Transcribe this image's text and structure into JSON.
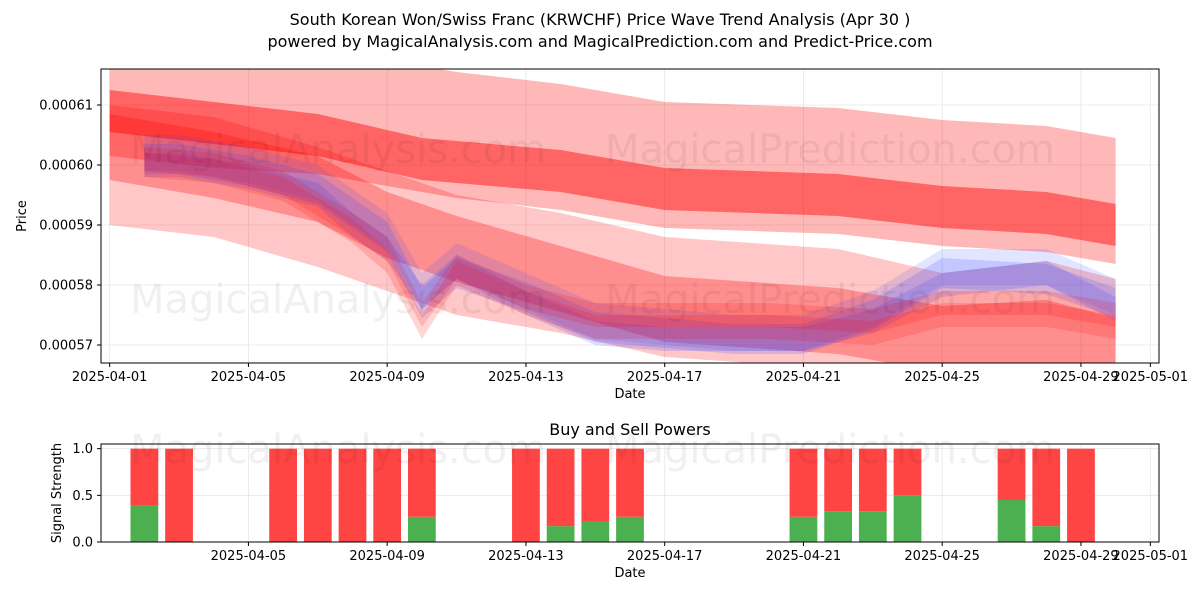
{
  "header": {
    "title": "South Korean Won/Swiss Franc (KRWCHF) Price Wave Trend Analysis (Apr 30 )",
    "subtitle": "powered by MagicalAnalysis.com and MagicalPrediction.com and Predict-Price.com"
  },
  "watermarks": [
    "MagicalAnalysis.com",
    "MagicalPrediction.com"
  ],
  "colors": {
    "red": "#ff0000",
    "blue": "#3344ff",
    "buy": "#4caf50",
    "sell": "#ff4444"
  },
  "chart_data": [
    {
      "type": "area",
      "xlabel": "Date",
      "ylabel": "Price",
      "xlim": [
        "2025-03-31T18:00",
        "2025-05-01T06:00"
      ],
      "ylim": [
        0.000567,
        0.000616
      ],
      "xticks": [
        "2025-04-01",
        "2025-04-05",
        "2025-04-09",
        "2025-04-13",
        "2025-04-17",
        "2025-04-21",
        "2025-04-25",
        "2025-04-29",
        "2025-05-01"
      ],
      "yticks": [
        0.00057,
        0.00058,
        0.00059,
        0.0006,
        0.00061
      ],
      "ytick_labels": [
        "0.00057",
        "0.00058",
        "0.00059",
        "0.00060",
        "0.00061"
      ],
      "grid": true,
      "series": [
        {
          "color": "red",
          "x": [
            "2025-04-01",
            "2025-04-04",
            "2025-04-07",
            "2025-04-10",
            "2025-04-14",
            "2025-04-17",
            "2025-04-22",
            "2025-04-25",
            "2025-04-28",
            "2025-04-30"
          ],
          "values": [
            0.000609,
            0.000607,
            0.000605,
            0.000601,
            0.000599,
            0.000596,
            0.000595,
            0.000593,
            0.000592,
            0.00059
          ],
          "spread": 3.5e-06,
          "alpha": 0.45
        },
        {
          "color": "red",
          "x": [
            "2025-04-01",
            "2025-04-04",
            "2025-04-07",
            "2025-04-09",
            "2025-04-11",
            "2025-04-14",
            "2025-04-17",
            "2025-04-22",
            "2025-04-25",
            "2025-04-28",
            "2025-04-30"
          ],
          "values": [
            0.000612,
            0.00061,
            0.000609,
            0.000607,
            0.000605,
            0.000603,
            0.0006,
            0.000599,
            0.000597,
            0.000596,
            0.000594
          ],
          "spread": 1.05e-05,
          "alpha": 0.28
        },
        {
          "color": "red",
          "x": [
            "2025-04-01",
            "2025-04-04",
            "2025-04-07",
            "2025-04-09",
            "2025-04-11",
            "2025-04-14",
            "2025-04-17",
            "2025-04-22",
            "2025-04-25",
            "2025-04-28",
            "2025-04-30"
          ],
          "values": [
            0.000603,
            0.0006,
            0.000596,
            0.00059,
            0.000586,
            0.000581,
            0.000576,
            0.000574,
            0.000571,
            0.000572,
            0.000569
          ],
          "spread": 5.5e-06,
          "alpha": 0.28
        },
        {
          "color": "red",
          "x": [
            "2025-04-01",
            "2025-04-04",
            "2025-04-07",
            "2025-04-09",
            "2025-04-11",
            "2025-04-14",
            "2025-04-17",
            "2025-04-22",
            "2025-04-25",
            "2025-04-28",
            "2025-04-30"
          ],
          "values": [
            0.0006,
            0.000598,
            0.000593,
            0.000589,
            0.000585,
            0.000582,
            0.000578,
            0.000576,
            0.000572,
            0.000574,
            0.000571
          ],
          "spread": 1e-05,
          "alpha": 0.22
        },
        {
          "color": "blue",
          "x": [
            "2025-04-02",
            "2025-04-03",
            "2025-04-05",
            "2025-04-07",
            "2025-04-08",
            "2025-04-09",
            "2025-04-10",
            "2025-04-11",
            "2025-04-13",
            "2025-04-15",
            "2025-04-17",
            "2025-04-19",
            "2025-04-21",
            "2025-04-23",
            "2025-04-25",
            "2025-04-28",
            "2025-04-30"
          ],
          "values": [
            0.000601,
            0.000601,
            0.000599,
            0.000596,
            0.000592,
            0.000588,
            0.000577,
            0.000582,
            0.000578,
            0.000573,
            0.000572,
            0.000571,
            0.000571,
            0.000575,
            0.000582,
            0.000581,
            0.000577
          ],
          "spread": 2.5e-06,
          "alpha": 0.18
        },
        {
          "color": "blue",
          "x": [
            "2025-04-02",
            "2025-04-03",
            "2025-04-05",
            "2025-04-07",
            "2025-04-08",
            "2025-04-09",
            "2025-04-10",
            "2025-04-11",
            "2025-04-13",
            "2025-04-15",
            "2025-04-17",
            "2025-04-19",
            "2025-04-21",
            "2025-04-23",
            "2025-04-25",
            "2025-04-28",
            "2025-04-30"
          ],
          "values": [
            0.0006,
            0.0006,
            0.000598,
            0.000595,
            0.00059,
            0.000586,
            0.000578,
            0.000583,
            0.000577,
            0.000572,
            0.000571,
            0.000571,
            0.000571,
            0.000574,
            0.00058,
            0.000582,
            0.000576
          ],
          "spread": 2e-06,
          "alpha": 0.18
        },
        {
          "color": "blue",
          "x": [
            "2025-04-02",
            "2025-04-03",
            "2025-04-05",
            "2025-04-07",
            "2025-04-08",
            "2025-04-09",
            "2025-04-10",
            "2025-04-11",
            "2025-04-13",
            "2025-04-15",
            "2025-04-17",
            "2025-04-19",
            "2025-04-21",
            "2025-04-23",
            "2025-04-25",
            "2025-04-28",
            "2025-04-30"
          ],
          "values": [
            0.000602,
            0.000602,
            0.0006,
            0.000597,
            0.000593,
            0.000589,
            0.000579,
            0.000584,
            0.000579,
            0.000574,
            0.000573,
            0.000572,
            0.000572,
            0.000576,
            0.000583,
            0.000583,
            0.000578
          ],
          "spread": 3e-06,
          "alpha": 0.14
        },
        {
          "color": "red",
          "x": [
            "2025-04-02",
            "2025-04-04",
            "2025-04-06",
            "2025-04-08",
            "2025-04-09",
            "2025-04-10",
            "2025-04-11",
            "2025-04-13",
            "2025-04-15",
            "2025-04-17",
            "2025-04-20",
            "2025-04-23",
            "2025-04-25",
            "2025-04-28",
            "2025-04-30"
          ],
          "values": [
            0.0006,
            0.000599,
            0.000596,
            0.000589,
            0.000584,
            0.000573,
            0.000582,
            0.000577,
            0.000573,
            0.000573,
            0.000573,
            0.000572,
            0.000575,
            0.000575,
            0.000573
          ],
          "spread": 2e-06,
          "alpha": 0.16
        },
        {
          "color": "red",
          "x": [
            "2025-04-02",
            "2025-04-04",
            "2025-04-06",
            "2025-04-08",
            "2025-04-09",
            "2025-04-10",
            "2025-04-11",
            "2025-04-13",
            "2025-04-15",
            "2025-04-17",
            "2025-04-20",
            "2025-04-23",
            "2025-04-25",
            "2025-04-28",
            "2025-04-30"
          ],
          "values": [
            0.000601,
            0.0006,
            0.000597,
            0.00059,
            0.000586,
            0.000575,
            0.000583,
            0.000578,
            0.000575,
            0.000575,
            0.000575,
            0.000574,
            0.000577,
            0.000577,
            0.000575
          ],
          "spread": 2e-06,
          "alpha": 0.16
        }
      ]
    },
    {
      "type": "bar",
      "title": "Buy and Sell Powers",
      "xlabel": "Date",
      "ylabel": "Signal Strength",
      "xlim": [
        "2025-03-31T18:00",
        "2025-05-01T06:00"
      ],
      "ylim": [
        0,
        1.05
      ],
      "xticks": [
        "2025-04-05",
        "2025-04-09",
        "2025-04-13",
        "2025-04-17",
        "2025-04-21",
        "2025-04-25",
        "2025-04-29",
        "2025-05-01"
      ],
      "yticks": [
        0.0,
        0.5,
        1.0
      ],
      "ytick_labels": [
        "0.0",
        "0.5",
        "1.0"
      ],
      "grid": true,
      "categories": [
        "2025-04-02",
        "2025-04-03",
        "2025-04-06",
        "2025-04-07",
        "2025-04-08",
        "2025-04-09",
        "2025-04-10",
        "2025-04-13",
        "2025-04-14",
        "2025-04-15",
        "2025-04-16",
        "2025-04-21",
        "2025-04-22",
        "2025-04-23",
        "2025-04-24",
        "2025-04-27",
        "2025-04-28",
        "2025-04-29"
      ],
      "series": [
        {
          "name": "Buy",
          "values": [
            0.39,
            0,
            0,
            0,
            0,
            0,
            0.27,
            0,
            0.17,
            0.22,
            0.27,
            0.27,
            0.33,
            0.33,
            0.5,
            0.45,
            0.17,
            0
          ]
        },
        {
          "name": "Sell",
          "values": [
            0.61,
            1,
            1,
            1,
            1,
            1,
            0.73,
            1,
            0.83,
            0.78,
            0.73,
            0.73,
            0.67,
            0.67,
            0.5,
            0.55,
            0.83,
            1
          ]
        }
      ]
    }
  ]
}
